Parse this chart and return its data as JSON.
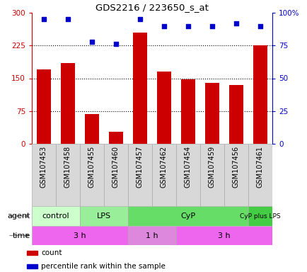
{
  "title": "GDS2216 / 223650_s_at",
  "samples": [
    "GSM107453",
    "GSM107458",
    "GSM107455",
    "GSM107460",
    "GSM107457",
    "GSM107462",
    "GSM107454",
    "GSM107459",
    "GSM107456",
    "GSM107461"
  ],
  "counts": [
    170,
    185,
    68,
    28,
    255,
    165,
    148,
    140,
    135,
    225
  ],
  "percentile_ranks": [
    95,
    95,
    78,
    76,
    95,
    90,
    90,
    90,
    92,
    90
  ],
  "ylim_left": [
    0,
    300
  ],
  "ylim_right": [
    0,
    100
  ],
  "yticks_left": [
    0,
    75,
    150,
    225,
    300
  ],
  "yticks_right": [
    0,
    25,
    50,
    75,
    100
  ],
  "bar_color": "#cc0000",
  "dot_color": "#0000cc",
  "agent_groups": [
    {
      "label": "control",
      "start": 0,
      "end": 2,
      "color": "#ccffcc"
    },
    {
      "label": "LPS",
      "start": 2,
      "end": 4,
      "color": "#99ee99"
    },
    {
      "label": "CyP",
      "start": 4,
      "end": 9,
      "color": "#66dd66"
    },
    {
      "label": "CyP plus LPS",
      "start": 9,
      "end": 10,
      "color": "#44cc44"
    }
  ],
  "time_groups": [
    {
      "label": "3 h",
      "start": 0,
      "end": 4,
      "color": "#ee66ee"
    },
    {
      "label": "1 h",
      "start": 4,
      "end": 6,
      "color": "#dd88dd"
    },
    {
      "label": "3 h",
      "start": 6,
      "end": 10,
      "color": "#ee66ee"
    }
  ],
  "legend_items": [
    {
      "label": "count",
      "color": "#cc0000"
    },
    {
      "label": "percentile rank within the sample",
      "color": "#0000cc"
    }
  ],
  "dotted_lines": [
    75,
    150,
    225
  ],
  "background_color": "#ffffff",
  "xticklabel_bg": "#d8d8d8",
  "border_color": "#aaaaaa"
}
